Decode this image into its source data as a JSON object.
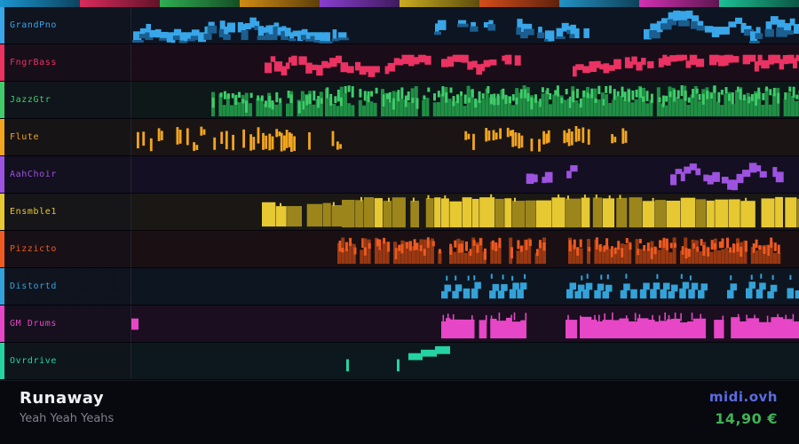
{
  "footer": {
    "title": "Runaway",
    "artist": "Yeah Yeah Yeahs",
    "brand": "midi.ovh",
    "price": "14,90 €",
    "brand_color": "#5a6ce0",
    "price_color": "#3eb454",
    "title_color": "#eef0f4",
    "artist_color": "#7f8089"
  },
  "tracks": [
    {
      "name": "GrandPno",
      "color": "#38a6e8",
      "dim": "#1b5e8f",
      "strip": "#1b95d0",
      "style": "piano",
      "segments": [
        [
          2,
          240,
          0.95,
          12,
          38
        ],
        [
          342,
          417,
          0.45,
          15,
          32
        ],
        [
          427,
          520,
          0.8,
          5,
          36
        ],
        [
          577,
          752,
          0.95,
          4,
          37
        ]
      ]
    },
    {
      "name": "FngrBass",
      "color": "#ea3263",
      "dim": "#8f1c3c",
      "strip": "#d92b5c",
      "style": "jag",
      "segments": [
        [
          150,
          243,
          0.9,
          13,
          34
        ],
        [
          252,
          440,
          0.85,
          12,
          34
        ],
        [
          497,
          752,
          0.9,
          12,
          34
        ]
      ]
    },
    {
      "name": "JazzGtr",
      "color": "#41cb6b",
      "dim": "#1f8f44",
      "strip": "#2fae53",
      "style": "dense",
      "segments": [
        [
          90,
          215,
          0.85,
          10,
          40
        ],
        [
          218,
          752,
          0.95,
          4,
          40
        ]
      ]
    },
    {
      "name": "Flute",
      "color": "#f2a51f",
      "dim": "#a06a10",
      "strip": "#cf8c15",
      "style": "grass",
      "segments": [
        [
          6,
          185,
          0.65,
          8,
          38
        ],
        [
          192,
          245,
          0.3,
          10,
          36
        ],
        [
          348,
          518,
          0.65,
          8,
          38
        ],
        [
          532,
          558,
          0.35,
          10,
          36
        ]
      ]
    },
    {
      "name": "AahChoir",
      "color": "#9d52e0",
      "dim": "#5c2b8f",
      "strip": "#8a3ecf",
      "style": "jag",
      "segments": [
        [
          435,
          500,
          0.6,
          10,
          34
        ],
        [
          607,
          729,
          0.85,
          4,
          36
        ]
      ]
    },
    {
      "name": "Ensmble1",
      "color": "#e6c832",
      "dim": "#9c861c",
      "strip": "#cbac20",
      "style": "block",
      "segments": [
        [
          147,
          236,
          0.92,
          10,
          38
        ],
        [
          237,
          752,
          0.96,
          4,
          39
        ]
      ]
    },
    {
      "name": "Pizzicto",
      "color": "#ee5a20",
      "dim": "#993812",
      "strip": "#d44d1b",
      "style": "dense",
      "segments": [
        [
          232,
          464,
          0.85,
          7,
          38
        ],
        [
          492,
          730,
          0.85,
          7,
          38
        ]
      ]
    },
    {
      "name": "Distortd",
      "color": "#33a2d8",
      "dim": "#1c628c",
      "strip": "#2391c4",
      "style": "chunk",
      "segments": [
        [
          349,
          440,
          0.85,
          6,
          35
        ],
        [
          490,
          752,
          0.9,
          6,
          35
        ]
      ]
    },
    {
      "name": "GM Drums",
      "color": "#e746c6",
      "dim": "#8f2278",
      "strip": "#d231b2",
      "style": "drum",
      "segments": [
        [
          349,
          440,
          0.96,
          8,
          38
        ],
        [
          489,
          752,
          0.96,
          8,
          38
        ]
      ],
      "rects": [
        [
          0,
          15,
          8,
          13
        ]
      ]
    },
    {
      "name": "Ovrdrive",
      "color": "#25d3a2",
      "dim": "#13805f",
      "strip": "#1cc195",
      "style": "jag",
      "segments": [],
      "rects": [
        [
          242,
          19,
          3,
          14
        ],
        [
          299,
          19,
          3,
          14
        ],
        [
          312,
          12,
          16,
          8
        ],
        [
          326,
          8,
          18,
          8
        ],
        [
          342,
          4,
          17,
          9
        ]
      ]
    }
  ]
}
